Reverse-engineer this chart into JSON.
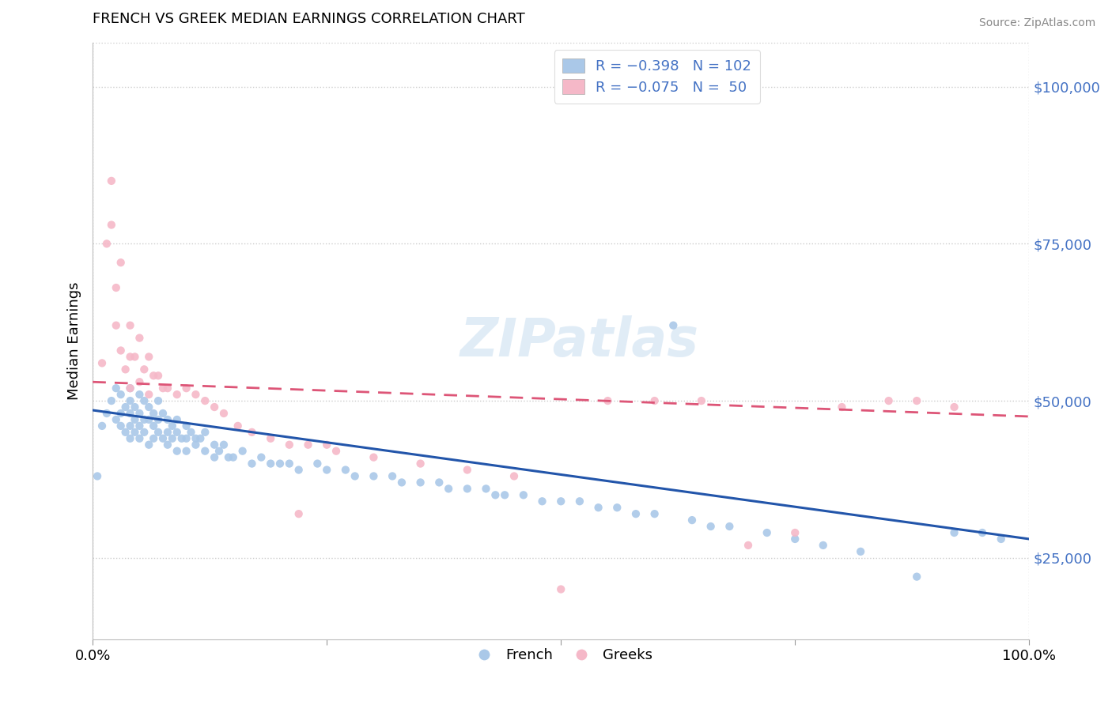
{
  "title": "FRENCH VS GREEK MEDIAN EARNINGS CORRELATION CHART",
  "source": "Source: ZipAtlas.com",
  "ylabel": "Median Earnings",
  "yticks": [
    25000,
    50000,
    75000,
    100000
  ],
  "ytick_labels": [
    "$25,000",
    "$50,000",
    "$75,000",
    "$100,000"
  ],
  "ylim": [
    12000,
    107000
  ],
  "xlim": [
    0.0,
    1.0
  ],
  "french_color": "#aac8e8",
  "greek_color": "#f5b8c8",
  "french_line_color": "#2255aa",
  "greek_line_color": "#dd5577",
  "title_color": "#000000",
  "ytick_color": "#4472c4",
  "xtick_color": "#000000",
  "legend_label_color": "#4472c4",
  "watermark": "ZIPatlas",
  "french_x": [
    0.005,
    0.01,
    0.015,
    0.02,
    0.025,
    0.025,
    0.03,
    0.03,
    0.03,
    0.035,
    0.035,
    0.04,
    0.04,
    0.04,
    0.04,
    0.04,
    0.045,
    0.045,
    0.045,
    0.05,
    0.05,
    0.05,
    0.05,
    0.055,
    0.055,
    0.055,
    0.06,
    0.06,
    0.06,
    0.065,
    0.065,
    0.065,
    0.07,
    0.07,
    0.07,
    0.075,
    0.075,
    0.08,
    0.08,
    0.08,
    0.085,
    0.085,
    0.09,
    0.09,
    0.09,
    0.095,
    0.1,
    0.1,
    0.1,
    0.105,
    0.11,
    0.11,
    0.115,
    0.12,
    0.12,
    0.13,
    0.13,
    0.135,
    0.14,
    0.145,
    0.15,
    0.16,
    0.17,
    0.18,
    0.19,
    0.2,
    0.21,
    0.22,
    0.24,
    0.25,
    0.27,
    0.28,
    0.3,
    0.32,
    0.33,
    0.35,
    0.37,
    0.38,
    0.4,
    0.42,
    0.43,
    0.44,
    0.46,
    0.48,
    0.5,
    0.52,
    0.54,
    0.56,
    0.58,
    0.6,
    0.62,
    0.64,
    0.66,
    0.68,
    0.72,
    0.75,
    0.78,
    0.82,
    0.88,
    0.92,
    0.95,
    0.97
  ],
  "french_y": [
    38000,
    46000,
    48000,
    50000,
    47000,
    52000,
    48000,
    46000,
    51000,
    49000,
    45000,
    50000,
    48000,
    46000,
    52000,
    44000,
    49000,
    47000,
    45000,
    51000,
    48000,
    46000,
    44000,
    50000,
    47000,
    45000,
    49000,
    47000,
    43000,
    48000,
    46000,
    44000,
    50000,
    47000,
    45000,
    48000,
    44000,
    47000,
    45000,
    43000,
    46000,
    44000,
    47000,
    45000,
    42000,
    44000,
    46000,
    44000,
    42000,
    45000,
    44000,
    43000,
    44000,
    45000,
    42000,
    43000,
    41000,
    42000,
    43000,
    41000,
    41000,
    42000,
    40000,
    41000,
    40000,
    40000,
    40000,
    39000,
    40000,
    39000,
    39000,
    38000,
    38000,
    38000,
    37000,
    37000,
    37000,
    36000,
    36000,
    36000,
    35000,
    35000,
    35000,
    34000,
    34000,
    34000,
    33000,
    33000,
    32000,
    32000,
    62000,
    31000,
    30000,
    30000,
    29000,
    28000,
    27000,
    26000,
    22000,
    29000,
    29000,
    28000
  ],
  "greek_x": [
    0.01,
    0.015,
    0.02,
    0.02,
    0.025,
    0.025,
    0.03,
    0.03,
    0.035,
    0.04,
    0.04,
    0.04,
    0.045,
    0.05,
    0.05,
    0.055,
    0.06,
    0.06,
    0.065,
    0.07,
    0.075,
    0.08,
    0.09,
    0.1,
    0.11,
    0.12,
    0.13,
    0.14,
    0.155,
    0.17,
    0.19,
    0.21,
    0.23,
    0.26,
    0.3,
    0.35,
    0.4,
    0.45,
    0.5,
    0.55,
    0.6,
    0.65,
    0.7,
    0.75,
    0.8,
    0.85,
    0.88,
    0.92,
    0.25,
    0.22
  ],
  "greek_y": [
    56000,
    75000,
    85000,
    78000,
    68000,
    62000,
    72000,
    58000,
    55000,
    62000,
    57000,
    52000,
    57000,
    53000,
    60000,
    55000,
    57000,
    51000,
    54000,
    54000,
    52000,
    52000,
    51000,
    52000,
    51000,
    50000,
    49000,
    48000,
    46000,
    45000,
    44000,
    43000,
    43000,
    42000,
    41000,
    40000,
    39000,
    38000,
    20000,
    50000,
    50000,
    50000,
    27000,
    29000,
    49000,
    50000,
    50000,
    49000,
    43000,
    32000
  ]
}
